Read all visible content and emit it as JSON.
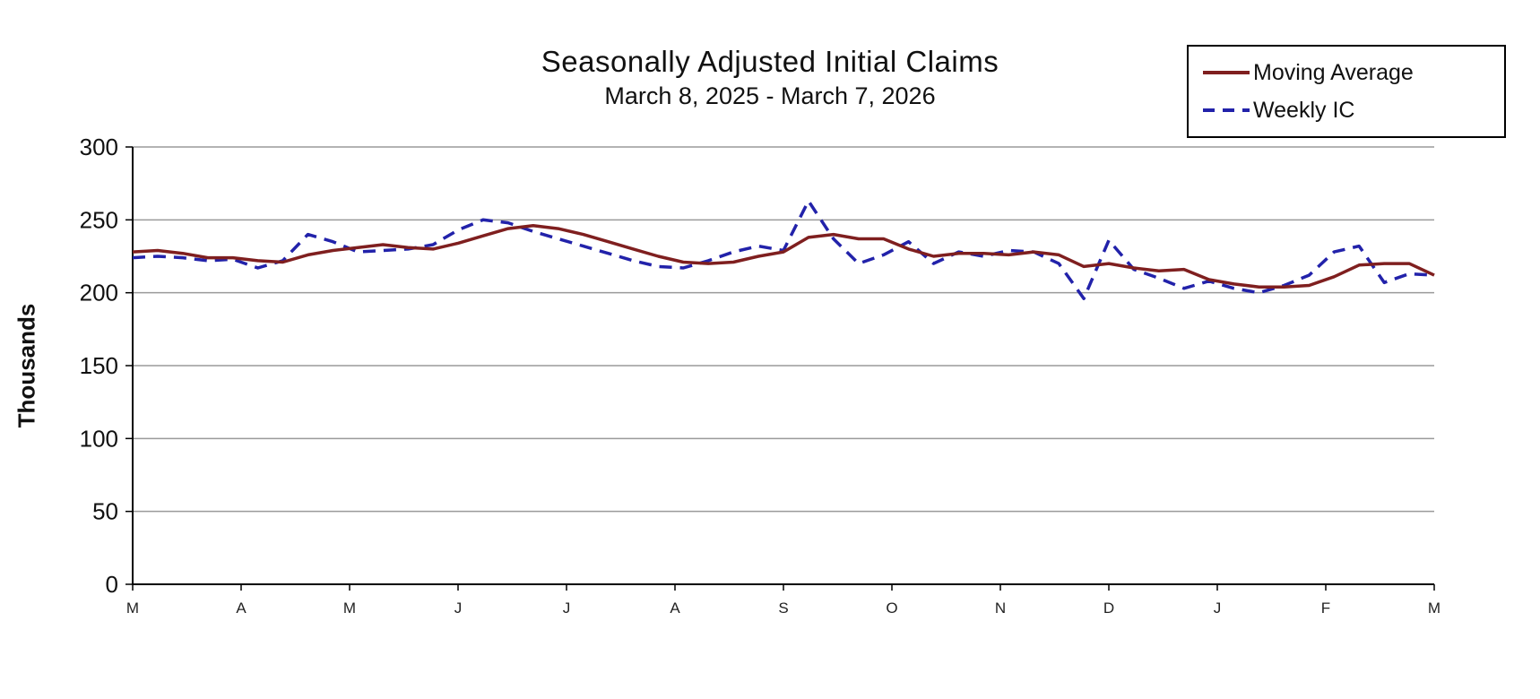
{
  "chart_data": {
    "type": "line",
    "title": "Seasonally Adjusted Initial Claims",
    "subtitle": "March 8, 2025 - March 7, 2026",
    "xlabel": "",
    "ylabel": "Thousands",
    "ylim": [
      0,
      300
    ],
    "yticks": [
      0,
      50,
      100,
      150,
      200,
      250,
      300
    ],
    "x_tick_labels": [
      "M",
      "A",
      "M",
      "J",
      "J",
      "A",
      "S",
      "O",
      "N",
      "D",
      "J",
      "F",
      "M"
    ],
    "grid": "horizontal",
    "legend_position": "top-right",
    "colors": {
      "moving_average": "#7f1f1f",
      "weekly_ic": "#2222aa",
      "gridline": "#9a9a9a",
      "axis": "#000000"
    },
    "series": [
      {
        "name": "Moving Average",
        "style": "solid",
        "color": "#7f1f1f",
        "values": [
          228,
          229,
          227,
          224,
          224,
          222,
          221,
          226,
          229,
          231,
          233,
          231,
          230,
          234,
          239,
          244,
          246,
          244,
          240,
          235,
          230,
          225,
          221,
          220,
          221,
          225,
          228,
          238,
          240,
          237,
          237,
          230,
          225,
          227,
          227,
          226,
          228,
          226,
          218,
          220,
          217,
          215,
          216,
          209,
          206,
          204,
          204,
          205,
          211,
          219,
          220,
          220,
          212
        ]
      },
      {
        "name": "Weekly IC",
        "style": "dashed",
        "color": "#2222aa",
        "values": [
          224,
          225,
          224,
          222,
          223,
          217,
          222,
          240,
          235,
          228,
          229,
          230,
          233,
          243,
          250,
          248,
          242,
          237,
          232,
          227,
          222,
          218,
          217,
          222,
          228,
          232,
          229,
          263,
          237,
          220,
          226,
          235,
          220,
          228,
          225,
          229,
          228,
          220,
          196,
          236,
          216,
          210,
          203,
          208,
          203,
          200,
          205,
          212,
          228,
          232,
          207,
          213,
          212
        ]
      }
    ]
  }
}
